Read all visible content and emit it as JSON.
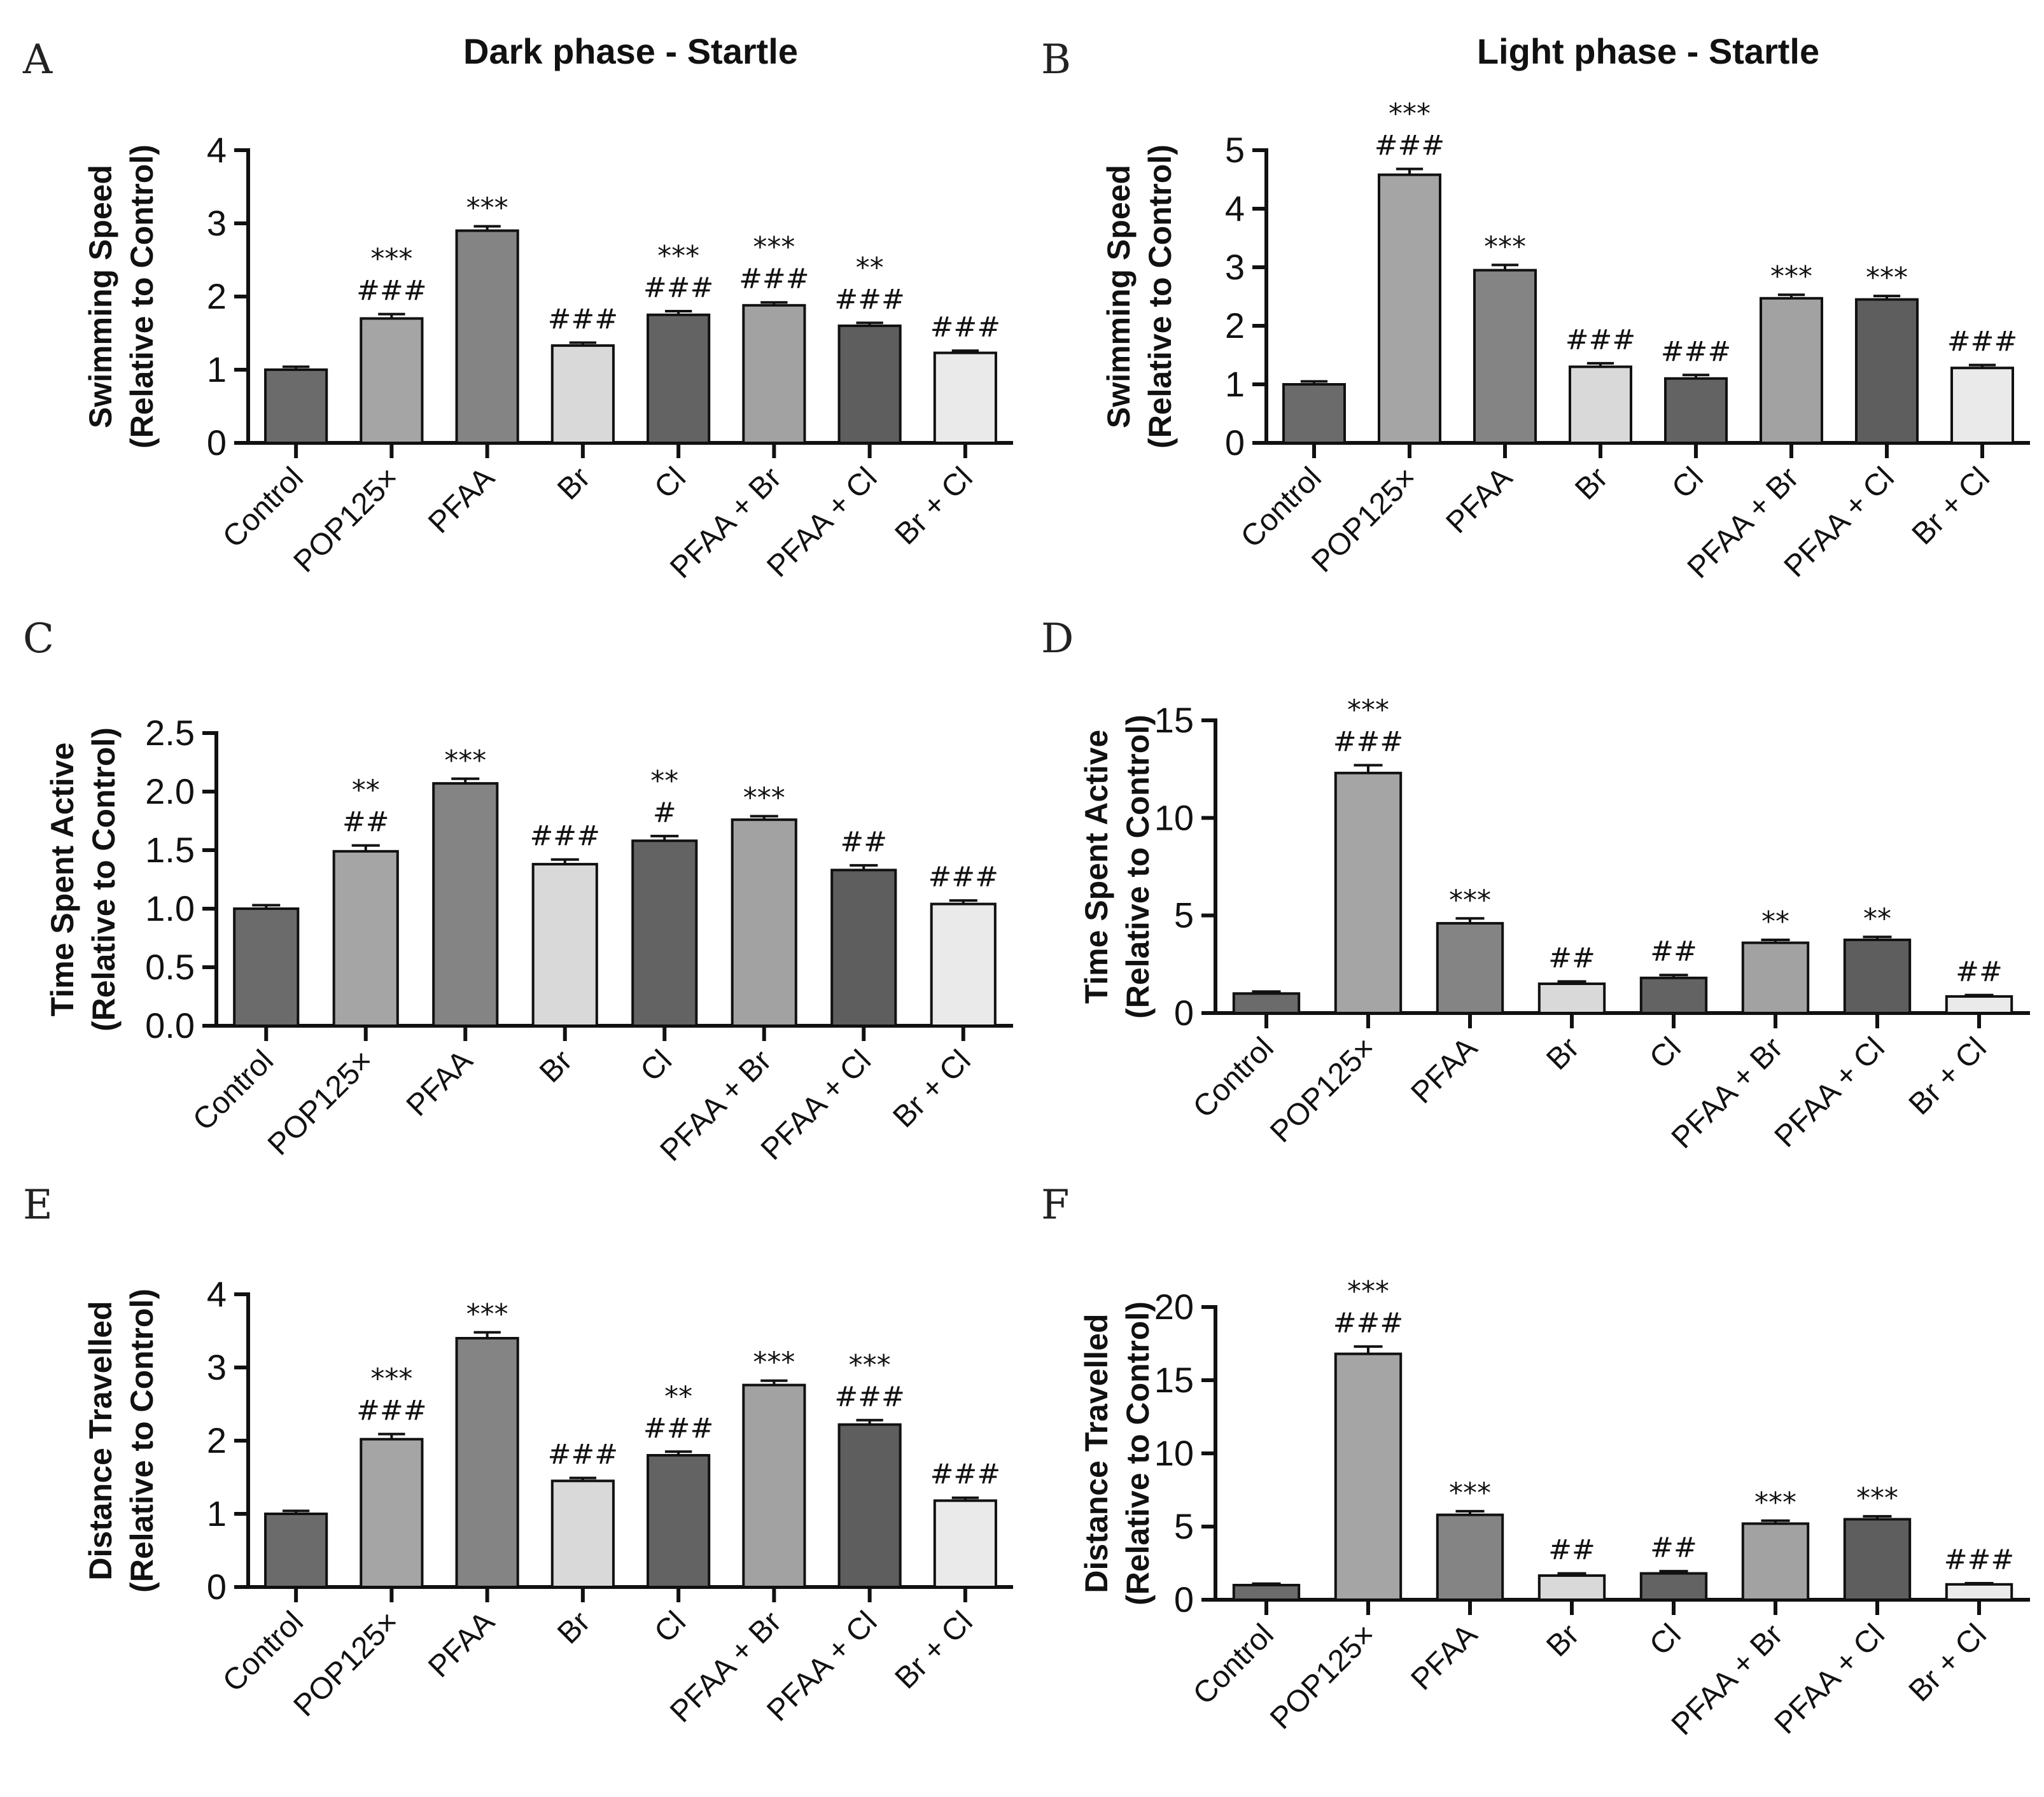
{
  "chart_data": [
    {
      "panel": "A",
      "type": "bar",
      "title": "Dark phase - Startle",
      "ylabel_line1": "Swimming Speed",
      "ylabel_line2": "(Relative to Control)",
      "ylim": [
        0,
        4
      ],
      "yticks": [
        "0",
        "1",
        "2",
        "3",
        "4"
      ],
      "categories": [
        "Control",
        "POP125×",
        "PFAA",
        "Br",
        "Cl",
        "PFAA + Br",
        "PFAA + Cl",
        "Br + Cl"
      ],
      "values": [
        1.0,
        1.7,
        2.9,
        1.33,
        1.75,
        1.88,
        1.6,
        1.23
      ],
      "errors": [
        0.04,
        0.06,
        0.06,
        0.04,
        0.05,
        0.04,
        0.04,
        0.03
      ],
      "sig_stars": [
        "",
        "***",
        "***",
        "",
        "***",
        "***",
        "**",
        ""
      ],
      "sig_hash": [
        "",
        "###",
        "",
        "###",
        "###",
        "###",
        "###",
        "###"
      ]
    },
    {
      "panel": "B",
      "type": "bar",
      "title": "Light phase - Startle",
      "ylabel_line1": "Swimming Speed",
      "ylabel_line2": "(Relative to Control)",
      "ylim": [
        0,
        5
      ],
      "yticks": [
        "0",
        "1",
        "2",
        "3",
        "4",
        "5"
      ],
      "categories": [
        "Control",
        "POP125×",
        "PFAA",
        "Br",
        "Cl",
        "PFAA + Br",
        "PFAA + Cl",
        "Br + Cl"
      ],
      "values": [
        1.0,
        4.58,
        2.95,
        1.3,
        1.1,
        2.47,
        2.45,
        1.28
      ],
      "errors": [
        0.05,
        0.1,
        0.09,
        0.06,
        0.06,
        0.06,
        0.06,
        0.05
      ],
      "sig_stars": [
        "",
        "***",
        "***",
        "",
        "",
        "***",
        "***",
        ""
      ],
      "sig_hash": [
        "",
        "###",
        "",
        "###",
        "###",
        "",
        "",
        "###"
      ]
    },
    {
      "panel": "C",
      "type": "bar",
      "title": "",
      "ylabel_line1": "Time Spent Active",
      "ylabel_line2": "(Relative to Control)",
      "ylim": [
        0,
        2.5
      ],
      "yticks": [
        "0.0",
        "0.5",
        "1.0",
        "1.5",
        "2.0",
        "2.5"
      ],
      "categories": [
        "Control",
        "POP125×",
        "PFAA",
        "Br",
        "Cl",
        "PFAA + Br",
        "PFAA + Cl",
        "Br + Cl"
      ],
      "values": [
        1.0,
        1.49,
        2.07,
        1.38,
        1.58,
        1.76,
        1.33,
        1.04
      ],
      "errors": [
        0.03,
        0.05,
        0.04,
        0.04,
        0.04,
        0.03,
        0.04,
        0.03
      ],
      "sig_stars": [
        "",
        "**",
        "***",
        "",
        "**",
        "***",
        "",
        ""
      ],
      "sig_hash": [
        "",
        "##",
        "",
        "###",
        "#",
        "",
        "##",
        "###"
      ]
    },
    {
      "panel": "D",
      "type": "bar",
      "title": "",
      "ylabel_line1": "Time Spent Active",
      "ylabel_line2": "(Relative to Control)",
      "ylim": [
        0,
        15
      ],
      "yticks": [
        "0",
        "5",
        "10",
        "15"
      ],
      "categories": [
        "Control",
        "POP125×",
        "PFAA",
        "Br",
        "Cl",
        "PFAA + Br",
        "PFAA + Cl",
        "Br + Cl"
      ],
      "values": [
        1.0,
        12.3,
        4.6,
        1.5,
        1.8,
        3.6,
        3.75,
        0.85
      ],
      "errors": [
        0.1,
        0.4,
        0.25,
        0.12,
        0.15,
        0.15,
        0.15,
        0.07
      ],
      "sig_stars": [
        "",
        "***",
        "***",
        "",
        "",
        "**",
        "**",
        ""
      ],
      "sig_hash": [
        "",
        "###",
        "",
        "##",
        "##",
        "",
        "",
        "##"
      ]
    },
    {
      "panel": "E",
      "type": "bar",
      "title": "",
      "ylabel_line1": "Distance Travelled",
      "ylabel_line2": "(Relative to Control)",
      "ylim": [
        0,
        4
      ],
      "yticks": [
        "0",
        "1",
        "2",
        "3",
        "4"
      ],
      "categories": [
        "Control",
        "POP125×",
        "PFAA",
        "Br",
        "Cl",
        "PFAA + Br",
        "PFAA + Cl",
        "Br + Cl"
      ],
      "values": [
        1.0,
        2.02,
        3.4,
        1.45,
        1.8,
        2.76,
        2.22,
        1.18
      ],
      "errors": [
        0.04,
        0.07,
        0.08,
        0.04,
        0.05,
        0.06,
        0.06,
        0.04
      ],
      "sig_stars": [
        "",
        "***",
        "***",
        "",
        "**",
        "***",
        "***",
        ""
      ],
      "sig_hash": [
        "",
        "###",
        "",
        "###",
        "###",
        "",
        "###",
        "###"
      ]
    },
    {
      "panel": "F",
      "type": "bar",
      "title": "",
      "ylabel_line1": "Distance Travelled",
      "ylabel_line2": "(Relative to Control)",
      "ylim": [
        0,
        20
      ],
      "yticks": [
        "0",
        "5",
        "10",
        "15",
        "20"
      ],
      "categories": [
        "Control",
        "POP125×",
        "PFAA",
        "Br",
        "Cl",
        "PFAA + Br",
        "PFAA + Cl",
        "Br + Cl"
      ],
      "values": [
        1.0,
        16.8,
        5.8,
        1.65,
        1.8,
        5.2,
        5.5,
        1.05
      ],
      "errors": [
        0.1,
        0.5,
        0.25,
        0.15,
        0.15,
        0.2,
        0.2,
        0.08
      ],
      "sig_stars": [
        "",
        "***",
        "***",
        "",
        "",
        "***",
        "***",
        ""
      ],
      "sig_hash": [
        "",
        "###",
        "",
        "##",
        "##",
        "",
        "",
        "###"
      ]
    }
  ],
  "colors": {
    "bar_fills": [
      "#6b6b6b",
      "#a5a5a5",
      "#848484",
      "#d9d9d9",
      "#636363",
      "#a2a2a2",
      "#5e5e5e",
      "#eaeaea"
    ],
    "ink": "#111111"
  }
}
